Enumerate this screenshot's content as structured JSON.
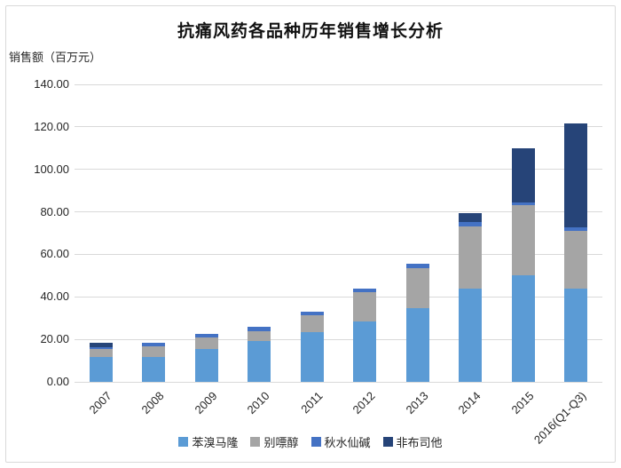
{
  "page": {
    "background": "#ffffff",
    "frame_border_color": "#d9d9d9",
    "gridline_color": "#d9d9d9",
    "text_color": "#262626"
  },
  "chart_data": {
    "type": "bar",
    "stacked": true,
    "title": "抗痛风药各品种历年销售增长分析",
    "ylabel": "销售额（百万元）",
    "xlabel": "",
    "grid": true,
    "legend_position": "bottom",
    "ylim": [
      0,
      140
    ],
    "yticks": [
      "0.00",
      "20.00",
      "40.00",
      "60.00",
      "80.00",
      "100.00",
      "120.00",
      "140.00"
    ],
    "categories": [
      "2007",
      "2008",
      "2009",
      "2010",
      "2011",
      "2012",
      "2013",
      "2014",
      "2015",
      "2016(Q1-Q3)"
    ],
    "series": [
      {
        "name": "苯溴马隆",
        "color": "#5B9BD5",
        "values": [
          11.6,
          11.6,
          15.4,
          19.4,
          23.6,
          28.4,
          34.5,
          44.0,
          50.0,
          44.0
        ]
      },
      {
        "name": "别嘌醇",
        "color": "#A5A5A5",
        "values": [
          3.7,
          5.1,
          5.7,
          4.6,
          7.8,
          13.9,
          19.0,
          29.3,
          33.3,
          27.2
        ]
      },
      {
        "name": "秋水仙碱",
        "color": "#4472C4",
        "values": [
          1.2,
          1.7,
          1.5,
          1.9,
          1.7,
          1.5,
          2.0,
          1.8,
          1.3,
          1.4
        ]
      },
      {
        "name": "非布司他",
        "color": "#264478",
        "values": [
          1.7,
          0,
          0,
          0,
          0,
          0,
          0,
          4.2,
          25.5,
          48.9
        ]
      }
    ],
    "totals": [
      18.2,
      18.4,
      22.6,
      25.9,
      33.1,
      43.8,
      55.5,
      79.3,
      110.1,
      121.5
    ]
  }
}
